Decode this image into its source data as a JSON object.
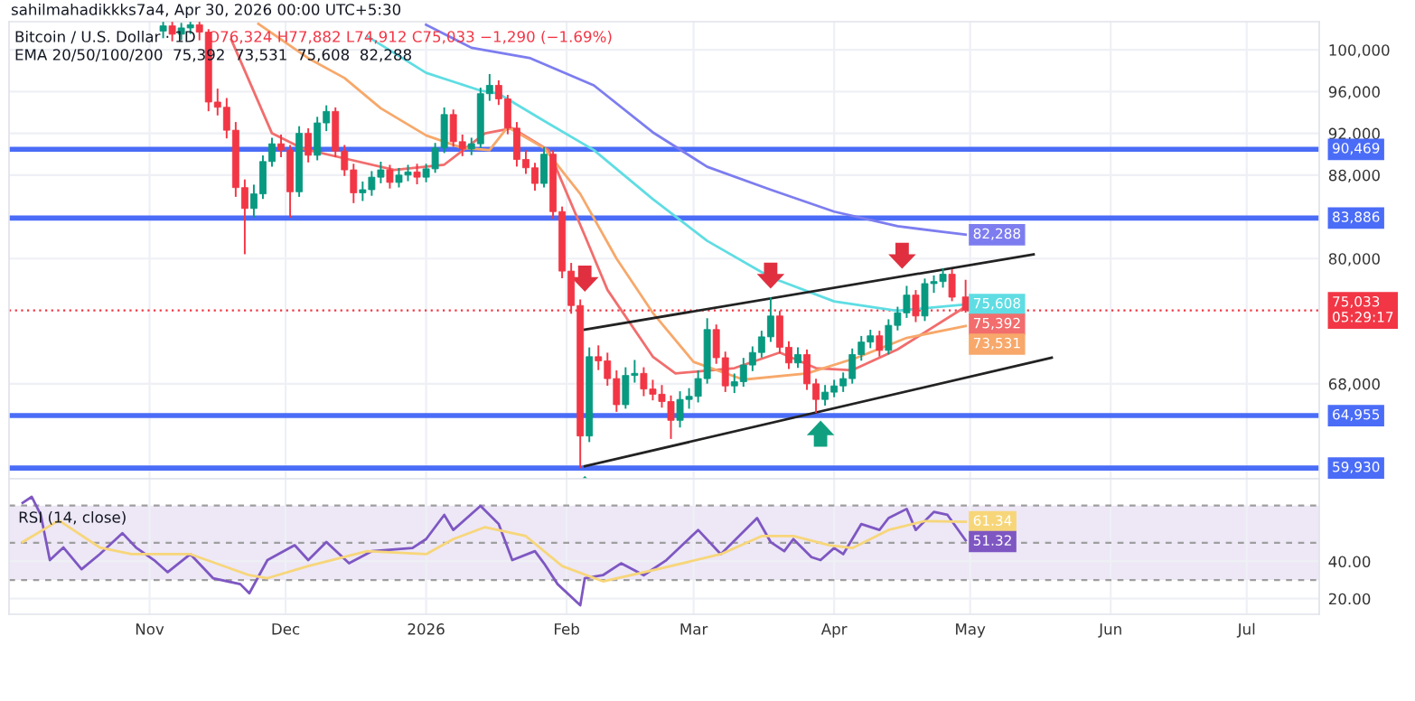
{
  "chart_data": [
    {
      "type": "candlestick",
      "title": "Bitcoin / U.S. Dollar · 1D",
      "subtitle": "EMA 20/50/100/200  75,392  73,531  75,608  82,288",
      "annotations": [
        "sahilmahadikkks7a4, Apr 30, 2026 00:00 UTC+5:30",
        "O76,324 H77,882 L74,912 C75,033 −1,290 (−1.69%)"
      ],
      "x": [
        "2025-11-04",
        "2025-11-06",
        "2025-11-08",
        "2025-11-10",
        "2025-11-12",
        "2025-11-14",
        "2025-11-16",
        "2025-11-18",
        "2025-11-20",
        "2025-11-22",
        "2025-11-24",
        "2025-11-26",
        "2025-11-28",
        "2025-11-30",
        "2025-12-02",
        "2025-12-04",
        "2025-12-06",
        "2025-12-08",
        "2025-12-10",
        "2025-12-12",
        "2025-12-14",
        "2025-12-16",
        "2025-12-18",
        "2025-12-20",
        "2025-12-22",
        "2025-12-24",
        "2025-12-26",
        "2025-12-28",
        "2025-12-30",
        "2026-01-01",
        "2026-01-03",
        "2026-01-05",
        "2026-01-07",
        "2026-01-09",
        "2026-01-11",
        "2026-01-13",
        "2026-01-15",
        "2026-01-17",
        "2026-01-19",
        "2026-01-21",
        "2026-01-23",
        "2026-01-25",
        "2026-01-27",
        "2026-01-29",
        "2026-01-31",
        "2026-02-02",
        "2026-02-04",
        "2026-02-06",
        "2026-02-08",
        "2026-02-10",
        "2026-02-12",
        "2026-02-14",
        "2026-02-16",
        "2026-02-18",
        "2026-02-20",
        "2026-02-22",
        "2026-02-24",
        "2026-02-26",
        "2026-02-28",
        "2026-03-02",
        "2026-03-04",
        "2026-03-06",
        "2026-03-08",
        "2026-03-10",
        "2026-03-12",
        "2026-03-14",
        "2026-03-16",
        "2026-03-18",
        "2026-03-20",
        "2026-03-22",
        "2026-03-24",
        "2026-03-26",
        "2026-03-28",
        "2026-03-30",
        "2026-04-01",
        "2026-04-03",
        "2026-04-05",
        "2026-04-07",
        "2026-04-09",
        "2026-04-11",
        "2026-04-13",
        "2026-04-15",
        "2026-04-17",
        "2026-04-19",
        "2026-04-21",
        "2026-04-23",
        "2026-04-25",
        "2026-04-27",
        "2026-04-30"
      ],
      "ohlc": [
        [
          101800,
          102600,
          101200,
          102300
        ],
        [
          102300,
          102600,
          100900,
          101500
        ],
        [
          101500,
          102500,
          101000,
          102100
        ],
        [
          102100,
          102600,
          101600,
          102400
        ],
        [
          102400,
          102600,
          101000,
          101700
        ],
        [
          101700,
          101900,
          94200,
          95000
        ],
        [
          95000,
          96200,
          93800,
          94500
        ],
        [
          94500,
          95300,
          91600,
          92300
        ],
        [
          92300,
          93000,
          86000,
          86800
        ],
        [
          86800,
          87500,
          80500,
          84800
        ],
        [
          84800,
          87000,
          84000,
          86200
        ],
        [
          86200,
          89800,
          85800,
          89300
        ],
        [
          89300,
          91500,
          88900,
          91000
        ],
        [
          91000,
          91800,
          89800,
          90400
        ],
        [
          90400,
          90800,
          84000,
          86400
        ],
        [
          86400,
          92600,
          86000,
          92000
        ],
        [
          92000,
          92400,
          89300,
          89900
        ],
        [
          89900,
          93500,
          89500,
          93000
        ],
        [
          93000,
          94600,
          92300,
          94100
        ],
        [
          94100,
          94400,
          89800,
          90300
        ],
        [
          90300,
          90800,
          88000,
          88500
        ],
        [
          88500,
          89000,
          85400,
          86300
        ],
        [
          86300,
          87300,
          85600,
          86600
        ],
        [
          86600,
          88300,
          86100,
          87800
        ],
        [
          87800,
          89200,
          87300,
          88500
        ],
        [
          88500,
          88900,
          86800,
          87300
        ],
        [
          87300,
          88600,
          86900,
          88000
        ],
        [
          88000,
          88900,
          87500,
          88300
        ],
        [
          88300,
          89000,
          87200,
          87800
        ],
        [
          87800,
          89000,
          87400,
          88600
        ],
        [
          88600,
          91000,
          88300,
          90600
        ],
        [
          90600,
          94400,
          90200,
          93800
        ],
        [
          93800,
          94200,
          90800,
          91200
        ],
        [
          91200,
          91800,
          89900,
          90500
        ],
        [
          90500,
          91500,
          90000,
          91000
        ],
        [
          91000,
          96300,
          90700,
          95800
        ],
        [
          95800,
          97600,
          95200,
          96600
        ],
        [
          96600,
          97000,
          94800,
          95300
        ],
        [
          95300,
          95600,
          92000,
          92500
        ],
        [
          92500,
          93000,
          88900,
          89500
        ],
        [
          89500,
          90300,
          88200,
          88700
        ],
        [
          88700,
          89100,
          86600,
          87200
        ],
        [
          87200,
          90600,
          86900,
          90000
        ],
        [
          90000,
          90300,
          83900,
          84500
        ],
        [
          84500,
          84900,
          78200,
          78800
        ],
        [
          78800,
          79500,
          74800,
          75500
        ],
        [
          75500,
          76000,
          60000,
          63000
        ],
        [
          63000,
          71400,
          62500,
          70600
        ],
        [
          70600,
          71600,
          69400,
          70200
        ],
        [
          70200,
          70900,
          67900,
          68500
        ],
        [
          68500,
          69200,
          65400,
          66000
        ],
        [
          66000,
          69500,
          65700,
          68800
        ],
        [
          68800,
          70200,
          68200,
          69000
        ],
        [
          69000,
          69500,
          66900,
          67500
        ],
        [
          67500,
          68300,
          66500,
          67000
        ],
        [
          67000,
          67800,
          65800,
          66300
        ],
        [
          66300,
          66800,
          62800,
          64500
        ],
        [
          64500,
          67200,
          63900,
          66500
        ],
        [
          66500,
          67500,
          65700,
          66800
        ],
        [
          66800,
          69200,
          66300,
          68500
        ],
        [
          68500,
          74200,
          68100,
          73200
        ],
        [
          73200,
          73600,
          70000,
          70500
        ],
        [
          70500,
          71000,
          67300,
          67800
        ],
        [
          67800,
          68900,
          67200,
          68200
        ],
        [
          68200,
          70400,
          67800,
          69800
        ],
        [
          69800,
          71500,
          69300,
          71000
        ],
        [
          71000,
          73000,
          70600,
          72500
        ],
        [
          72500,
          76200,
          72100,
          74500
        ],
        [
          74500,
          74900,
          71000,
          71500
        ],
        [
          71500,
          72000,
          69500,
          70000
        ],
        [
          70000,
          71400,
          69600,
          70800
        ],
        [
          70800,
          71200,
          67500,
          68000
        ],
        [
          68000,
          68400,
          65300,
          66500
        ],
        [
          66500,
          67800,
          66000,
          67200
        ],
        [
          67200,
          68300,
          66800,
          67800
        ],
        [
          67800,
          69000,
          67300,
          68500
        ],
        [
          68500,
          71300,
          68100,
          70800
        ],
        [
          70800,
          72500,
          70300,
          72000
        ],
        [
          72000,
          73100,
          71500,
          72600
        ],
        [
          72600,
          73000,
          70700,
          71200
        ],
        [
          71200,
          74100,
          70900,
          73600
        ],
        [
          73600,
          75300,
          73200,
          74800
        ],
        [
          74800,
          77300,
          74400,
          76500
        ],
        [
          76500,
          76900,
          74000,
          74500
        ],
        [
          74500,
          78000,
          74100,
          77600
        ],
        [
          77600,
          78300,
          76800,
          77800
        ],
        [
          77800,
          79000,
          77300,
          78500
        ],
        [
          78500,
          78900,
          76000,
          76300
        ],
        [
          76324,
          77882,
          74912,
          75033
        ]
      ],
      "series": [
        {
          "type": "line",
          "color": "#f26d6d",
          "x": [
            "2025-11-19",
            "2025-11-28",
            "2025-12-05",
            "2025-12-15",
            "2025-12-25",
            "2026-01-05",
            "2026-01-14",
            "2026-01-20",
            "2026-01-28",
            "2026-02-05",
            "2026-02-10",
            "2026-02-20",
            "2026-02-25",
            "2026-03-10",
            "2026-03-20",
            "2026-03-28",
            "2026-04-05",
            "2026-04-15",
            "2026-04-30"
          ],
          "values": [
            101000,
            92000,
            90500,
            89500,
            88500,
            89000,
            92000,
            92500,
            90400,
            82200,
            77000,
            70600,
            69000,
            69500,
            71000,
            69500,
            69300,
            71300,
            75392
          ],
          "value_labels": [
            null,
            null,
            null,
            null,
            null,
            null,
            null,
            null,
            null,
            null,
            null,
            null,
            null,
            null,
            null,
            null,
            null,
            null,
            "75,392"
          ]
        },
        {
          "type": "line",
          "color": "#f7a86a",
          "x": [
            "2025-11-25",
            "2025-12-06",
            "2025-12-14",
            "2025-12-22",
            "2026-01-01",
            "2026-01-09",
            "2026-01-15",
            "2026-01-19",
            "2026-01-27",
            "2026-02-04",
            "2026-02-12",
            "2026-02-20",
            "2026-03-01",
            "2026-03-12",
            "2026-03-26",
            "2026-04-06",
            "2026-04-17",
            "2026-04-30"
          ],
          "values": [
            102500,
            99200,
            97300,
            94400,
            91800,
            90600,
            90400,
            92600,
            90600,
            86200,
            80000,
            74800,
            70100,
            68400,
            69000,
            70500,
            72400,
            73531
          ],
          "value_labels": [
            null,
            null,
            null,
            null,
            null,
            null,
            null,
            null,
            null,
            null,
            null,
            null,
            null,
            null,
            null,
            null,
            null,
            "73,531"
          ]
        },
        {
          "type": "line",
          "color": "#5fdde3",
          "x": [
            "2025-12-19",
            "2026-01-01",
            "2026-01-13",
            "2026-01-17",
            "2026-01-27",
            "2026-02-07",
            "2026-02-20",
            "2026-03-04",
            "2026-03-18",
            "2026-04-01",
            "2026-04-15",
            "2026-04-30"
          ],
          "values": [
            101300,
            97800,
            96100,
            95800,
            93200,
            90400,
            85700,
            81700,
            78200,
            75900,
            75000,
            75608
          ],
          "value_labels": [
            null,
            null,
            null,
            null,
            null,
            null,
            null,
            null,
            null,
            null,
            null,
            "75,608"
          ]
        },
        {
          "type": "line",
          "color": "#7d7df0",
          "x": [
            "2026-01-01",
            "2026-01-11",
            "2026-01-24",
            "2026-02-07",
            "2026-02-20",
            "2026-03-04",
            "2026-03-18",
            "2026-04-01",
            "2026-04-15",
            "2026-04-30"
          ],
          "values": [
            102400,
            100200,
            99200,
            96600,
            92100,
            88800,
            86600,
            84500,
            83100,
            82288
          ],
          "value_labels": [
            null,
            null,
            null,
            null,
            null,
            null,
            null,
            null,
            null,
            "82,288"
          ]
        },
        {
          "type": "line",
          "color": "#222222",
          "x": [
            "2026-02-05",
            "2026-05-15"
          ],
          "values": [
            73200,
            80400
          ]
        },
        {
          "type": "line",
          "color": "#222222",
          "x": [
            "2026-02-05",
            "2026-05-19"
          ],
          "values": [
            60100,
            70500
          ]
        }
      ],
      "ref_lines": [
        {
          "axis": "y",
          "value": 90469,
          "label": "90,469",
          "color": "#4a6cf7"
        },
        {
          "axis": "y",
          "value": 83886,
          "label": "83,886",
          "color": "#4a6cf7"
        },
        {
          "axis": "y",
          "value": 64955,
          "label": "64,955",
          "color": "#4a6cf7"
        },
        {
          "axis": "y",
          "value": 59930,
          "label": "59,930",
          "color": "#4a6cf7"
        },
        {
          "axis": "y",
          "value": 75033,
          "label": "75,033\n05:29:17",
          "color": "#f23645",
          "line_style": "dotted"
        }
      ],
      "xlim": [
        "2025-10-01",
        "2026-07-17"
      ],
      "xticks": [
        {
          "value": "2025-11-01",
          "label": null
        },
        {
          "value": "2025-12-01",
          "label": null
        },
        {
          "value": "2026-01-01",
          "label": null
        },
        {
          "value": "2026-02-01",
          "label": null
        },
        {
          "value": "2026-03-01",
          "label": null
        },
        {
          "value": "2026-04-01",
          "label": null
        },
        {
          "value": "2026-05-01",
          "label": null
        },
        {
          "value": "2026-06-01",
          "label": null
        },
        {
          "value": "2026-07-01",
          "label": null
        }
      ],
      "ylim": [
        58900,
        102700
      ],
      "yticks": [
        {
          "value": 68000,
          "label": "68,000"
        },
        {
          "value": 80000,
          "label": "80,000"
        },
        {
          "value": 88000,
          "label": "88,000"
        },
        {
          "value": 92000,
          "label": "92,000"
        },
        {
          "value": 96000,
          "label": "96,000"
        },
        {
          "value": 100000,
          "label": "100,000"
        }
      ],
      "grid": true,
      "tick_labels": "y"
    },
    {
      "type": "line",
      "title": "RSI (14, close)",
      "series": [
        {
          "color": "#7e57c2",
          "x": [
            "2025-10-04",
            "2025-10-06",
            "2025-10-08",
            "2025-10-10",
            "2025-10-13",
            "2025-10-17",
            "2025-10-21",
            "2025-10-26",
            "2025-10-29",
            "2025-11-02",
            "2025-11-05",
            "2025-11-10",
            "2025-11-15",
            "2025-11-21",
            "2025-11-23",
            "2025-11-27",
            "2025-12-03",
            "2025-12-06",
            "2025-12-10",
            "2025-12-15",
            "2025-12-20",
            "2025-12-29",
            "2026-01-01",
            "2026-01-05",
            "2026-01-07",
            "2026-01-13",
            "2026-01-17",
            "2026-01-20",
            "2026-01-25",
            "2026-01-27",
            "2026-01-30",
            "2026-02-04",
            "2026-02-05",
            "2026-02-09",
            "2026-02-13",
            "2026-02-18",
            "2026-02-23",
            "2026-03-02",
            "2026-03-07",
            "2026-03-11",
            "2026-03-15",
            "2026-03-18",
            "2026-03-21",
            "2026-03-23",
            "2026-03-27",
            "2026-03-29",
            "2026-04-01",
            "2026-04-03",
            "2026-04-07",
            "2026-04-11",
            "2026-04-13",
            "2026-04-17",
            "2026-04-19",
            "2026-04-23",
            "2026-04-26",
            "2026-04-30"
          ],
          "values": [
            71.5,
            74.7,
            65,
            40.7,
            47.5,
            35.8,
            43.9,
            55.2,
            47.5,
            40.7,
            34.2,
            43.9,
            31,
            27.8,
            22.9,
            40.7,
            48.7,
            40.7,
            50.4,
            39,
            45.5,
            47.2,
            52,
            65,
            56.9,
            69.8,
            60.1,
            40.7,
            45.5,
            39,
            27.8,
            16.4,
            31,
            32.6,
            39,
            32.6,
            40.7,
            56.9,
            43.9,
            53.6,
            63.3,
            50.4,
            45.5,
            52,
            42.3,
            40.7,
            47.2,
            43.9,
            60.1,
            56.9,
            63.3,
            68.2,
            56.9,
            66.6,
            65,
            51.32
          ],
          "value_labels": [
            null,
            null,
            null,
            null,
            null,
            null,
            null,
            null,
            null,
            null,
            null,
            null,
            null,
            null,
            null,
            null,
            null,
            null,
            null,
            null,
            null,
            null,
            null,
            null,
            null,
            null,
            null,
            null,
            null,
            null,
            null,
            null,
            null,
            null,
            null,
            null,
            null,
            null,
            null,
            null,
            null,
            null,
            null,
            null,
            null,
            null,
            null,
            null,
            null,
            null,
            null,
            null,
            null,
            null,
            null,
            "51.32"
          ]
        },
        {
          "color": "#f7d67a",
          "x": [
            "2025-10-04",
            "2025-10-12",
            "2025-10-21",
            "2025-10-28",
            "2025-11-10",
            "2025-11-23",
            "2025-11-27",
            "2025-12-06",
            "2025-12-19",
            "2026-01-01",
            "2026-01-07",
            "2026-01-14",
            "2026-01-23",
            "2026-01-31",
            "2026-02-09",
            "2026-02-21",
            "2026-03-07",
            "2026-03-16",
            "2026-03-23",
            "2026-03-31",
            "2026-04-05",
            "2026-04-13",
            "2026-04-21",
            "2026-04-30"
          ],
          "values": [
            50.4,
            62,
            47.5,
            43.9,
            43.9,
            32.6,
            31,
            37.5,
            45.5,
            43.9,
            52,
            58.4,
            53.6,
            37.5,
            29.3,
            35.8,
            43.9,
            53.6,
            53.6,
            48.7,
            47.2,
            56.9,
            61.7,
            61.34
          ],
          "value_labels": [
            null,
            null,
            null,
            null,
            null,
            null,
            null,
            null,
            null,
            null,
            null,
            null,
            null,
            null,
            null,
            null,
            null,
            null,
            null,
            null,
            null,
            null,
            null,
            "61.34"
          ]
        }
      ],
      "ref_lines": [
        {
          "axis": "y",
          "value": 70,
          "color": "#9e9e9e",
          "line_style": "dashed"
        },
        {
          "axis": "y",
          "value": 50,
          "color": "#9e9e9e",
          "line_style": "dashed"
        },
        {
          "axis": "y",
          "value": 30,
          "color": "#9e9e9e",
          "line_style": "dashed"
        }
      ],
      "bands": [
        {
          "axis": "y",
          "from": 30,
          "to": 70,
          "color": "#ede7f6"
        }
      ],
      "xlim": [
        "2025-10-01",
        "2026-07-17"
      ],
      "xticks": [
        {
          "value": "2025-11-01",
          "label": "Nov"
        },
        {
          "value": "2025-12-01",
          "label": "Dec"
        },
        {
          "value": "2026-01-01",
          "label": "2026"
        },
        {
          "value": "2026-02-01",
          "label": "Feb"
        },
        {
          "value": "2026-03-01",
          "label": "Mar"
        },
        {
          "value": "2026-04-01",
          "label": "Apr"
        },
        {
          "value": "2026-05-01",
          "label": "May"
        },
        {
          "value": "2026-06-01",
          "label": "Jun"
        },
        {
          "value": "2026-07-01",
          "label": "Jul"
        }
      ],
      "ylim": [
        11.6,
        84.4
      ],
      "yticks": [
        {
          "value": 20,
          "label": "20.00"
        },
        {
          "value": 40,
          "label": "40.00"
        }
      ],
      "grid": true
    }
  ]
}
